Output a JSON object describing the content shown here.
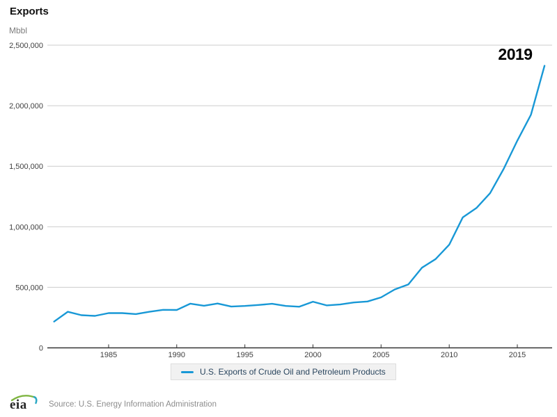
{
  "header": {
    "title": "Exports",
    "units": "Mbbl"
  },
  "annotation": {
    "year": "2019"
  },
  "legend": {
    "series_label": "U.S. Exports of Crude Oil and Petroleum Products"
  },
  "footer": {
    "logo": "eia",
    "source": "Source: U.S. Energy Information Administration"
  },
  "colors": {
    "line": "#1898d6",
    "grid": "#cccccc",
    "axis": "#333333",
    "tick_label": "#404040",
    "legend_text": "#29455e",
    "muted_text": "#7d7d7d"
  },
  "chart_data": {
    "type": "line",
    "title": "Exports",
    "ylabel": "Mbbl",
    "xlabel": "",
    "annotation": "2019",
    "legend_position": "bottom",
    "grid": true,
    "xlim": [
      1981,
      2017
    ],
    "ylim": [
      0,
      2500000
    ],
    "xticks": [
      1985,
      1990,
      1995,
      2000,
      2005,
      2010,
      2015
    ],
    "yticks": [
      0,
      500000,
      1000000,
      1500000,
      2000000,
      2500000
    ],
    "x": [
      1981,
      1982,
      1983,
      1984,
      1985,
      1986,
      1987,
      1988,
      1989,
      1990,
      1991,
      1992,
      1993,
      1994,
      1995,
      1996,
      1997,
      1998,
      1999,
      2000,
      2001,
      2002,
      2003,
      2004,
      2005,
      2006,
      2007,
      2008,
      2009,
      2010,
      2011,
      2012,
      2013,
      2014,
      2015,
      2016,
      2017
    ],
    "series": [
      {
        "name": "U.S. Exports of Crude Oil and Petroleum Products",
        "values": [
          217000,
          298000,
          270000,
          264000,
          287000,
          287000,
          279000,
          298000,
          314000,
          313000,
          365000,
          348000,
          366000,
          341000,
          346000,
          354000,
          364000,
          346000,
          340000,
          381000,
          351000,
          358000,
          375000,
          383000,
          417000,
          482000,
          524000,
          662000,
          733000,
          852000,
          1078000,
          1155000,
          1278000,
          1478000,
          1711000,
          1926000,
          2330000
        ]
      }
    ]
  }
}
